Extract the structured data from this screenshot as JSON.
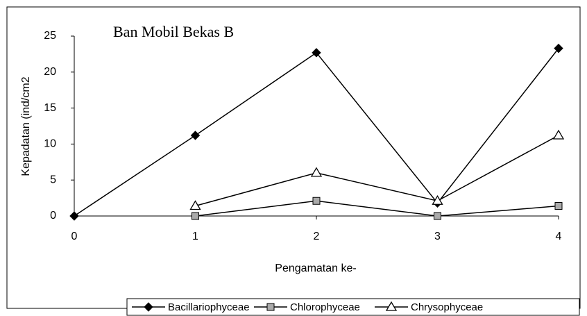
{
  "chart_data": {
    "type": "line",
    "title": "Ban Mobil Bekas B",
    "x_label": "Pengamatan ke-",
    "y_label": "Kepadatan (ind/cm2",
    "x": [
      0,
      1,
      2,
      3,
      4
    ],
    "xlim": [
      0,
      4
    ],
    "xticks": [
      0,
      1,
      2,
      3,
      4
    ],
    "ylim": [
      0,
      25
    ],
    "yticks": [
      0,
      5,
      10,
      15,
      20,
      25
    ],
    "grid": false,
    "legend": "bottom",
    "series": [
      {
        "name": "Bacillariophyceae",
        "color": "#000000",
        "marker": "diamond",
        "values": [
          0,
          11.2,
          22.7,
          1.8,
          23.3
        ]
      },
      {
        "name": "Chlorophyceae",
        "color": "#000000",
        "marker": "square",
        "values": [
          null,
          0,
          2.1,
          0,
          1.4
        ]
      },
      {
        "name": "Chrysophyceae",
        "color": "#000000",
        "marker": "triangle",
        "values": [
          null,
          1.4,
          6.0,
          2.1,
          11.2
        ]
      }
    ]
  }
}
